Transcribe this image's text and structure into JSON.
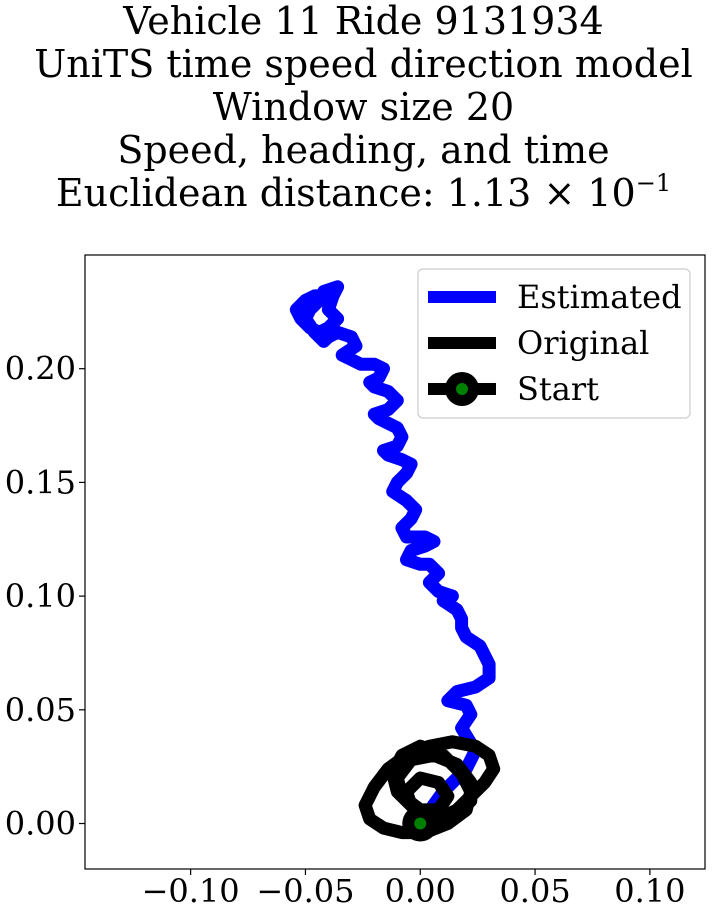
{
  "chart_data": {
    "type": "line",
    "title_lines": [
      "Vehicle 11 Ride 9131934",
      "UniTS time speed direction model",
      "Window size 20",
      "Speed, heading, and time"
    ],
    "title_metric_prefix": "Euclidean distance: ",
    "title_metric_mantissa": "1.13",
    "title_metric_times": "×",
    "title_metric_base": "10",
    "title_metric_exponent": "−1",
    "xlabel": "",
    "ylabel": "",
    "xlim": [
      -0.146,
      0.124
    ],
    "ylim": [
      -0.02,
      0.25
    ],
    "grid": false,
    "x_ticks": [
      -0.1,
      -0.05,
      0.0,
      0.05,
      0.1
    ],
    "x_tick_labels": [
      "−0.10",
      "−0.05",
      "0.00",
      "0.05",
      "0.10"
    ],
    "y_ticks": [
      0.0,
      0.05,
      0.1,
      0.15,
      0.2
    ],
    "y_tick_labels": [
      "0.00",
      "0.05",
      "0.10",
      "0.15",
      "0.20"
    ],
    "legend": {
      "placement": "top-right",
      "entries": [
        "Estimated",
        "Original",
        "Start"
      ]
    },
    "series": [
      {
        "name": "Estimated",
        "color": "#0000ff",
        "x": [
          0.0,
          0.01,
          0.02,
          0.024,
          0.018,
          0.022,
          0.02,
          0.012,
          0.016,
          0.024,
          0.03,
          0.03,
          0.026,
          0.02,
          0.018,
          0.018,
          0.016,
          0.01,
          0.014,
          0.008,
          0.004,
          0.008,
          0.004,
          0.0,
          -0.006,
          -0.004,
          0.002,
          0.006,
          0.002,
          -0.006,
          -0.008,
          -0.004,
          -0.002,
          -0.006,
          -0.012,
          -0.01,
          -0.006,
          -0.004,
          -0.008,
          -0.014,
          -0.016,
          -0.01,
          -0.008,
          -0.01,
          -0.018,
          -0.02,
          -0.014,
          -0.01,
          -0.014,
          -0.02,
          -0.022,
          -0.018,
          -0.016,
          -0.02,
          -0.026,
          -0.03,
          -0.034,
          -0.028,
          -0.03,
          -0.036,
          -0.04,
          -0.042,
          -0.046,
          -0.05,
          -0.048,
          -0.044,
          -0.042,
          -0.036,
          -0.038,
          -0.04,
          -0.036,
          -0.04,
          -0.044,
          -0.048,
          -0.052,
          -0.054,
          -0.05,
          -0.046,
          -0.042,
          -0.04
        ],
        "y": [
          0.0,
          0.014,
          0.024,
          0.032,
          0.042,
          0.048,
          0.052,
          0.054,
          0.058,
          0.06,
          0.064,
          0.07,
          0.078,
          0.082,
          0.086,
          0.09,
          0.094,
          0.098,
          0.1,
          0.102,
          0.106,
          0.11,
          0.114,
          0.114,
          0.116,
          0.12,
          0.122,
          0.124,
          0.126,
          0.126,
          0.13,
          0.134,
          0.138,
          0.142,
          0.146,
          0.15,
          0.154,
          0.158,
          0.16,
          0.162,
          0.164,
          0.166,
          0.17,
          0.174,
          0.178,
          0.18,
          0.182,
          0.186,
          0.19,
          0.192,
          0.194,
          0.196,
          0.2,
          0.202,
          0.202,
          0.204,
          0.206,
          0.21,
          0.214,
          0.216,
          0.214,
          0.212,
          0.216,
          0.222,
          0.226,
          0.23,
          0.234,
          0.236,
          0.232,
          0.226,
          0.222,
          0.218,
          0.216,
          0.218,
          0.222,
          0.226,
          0.23,
          0.232,
          0.232,
          0.228
        ]
      },
      {
        "name": "Original",
        "color": "#000000",
        "x": [
          0.0,
          0.008,
          0.016,
          0.022,
          0.028,
          0.032,
          0.03,
          0.024,
          0.014,
          0.004,
          -0.006,
          -0.014,
          -0.02,
          -0.024,
          -0.022,
          -0.016,
          -0.008,
          0.002,
          0.012,
          0.02,
          0.022,
          0.018,
          0.01,
          0.0,
          -0.008,
          -0.012,
          -0.01,
          -0.002,
          0.008,
          0.016,
          0.022,
          0.022,
          0.016,
          0.006,
          -0.004,
          -0.01,
          -0.008,
          0.0,
          0.008,
          0.012,
          0.008,
          0.0,
          -0.006,
          -0.004,
          0.002,
          0.006,
          0.004,
          0.0
        ],
        "y": [
          0.0,
          0.002,
          0.006,
          0.012,
          0.018,
          0.024,
          0.03,
          0.034,
          0.036,
          0.034,
          0.03,
          0.024,
          0.016,
          0.008,
          0.002,
          -0.002,
          -0.004,
          -0.004,
          0.0,
          0.006,
          0.014,
          0.022,
          0.03,
          0.034,
          0.03,
          0.022,
          0.014,
          0.006,
          0.002,
          0.004,
          0.01,
          0.018,
          0.026,
          0.03,
          0.028,
          0.02,
          0.012,
          0.006,
          0.006,
          0.012,
          0.018,
          0.02,
          0.014,
          0.008,
          0.004,
          0.006,
          0.004,
          0.0
        ]
      },
      {
        "name": "Start",
        "color": "#008000",
        "x": [
          0.0
        ],
        "y": [
          0.0
        ]
      }
    ]
  }
}
